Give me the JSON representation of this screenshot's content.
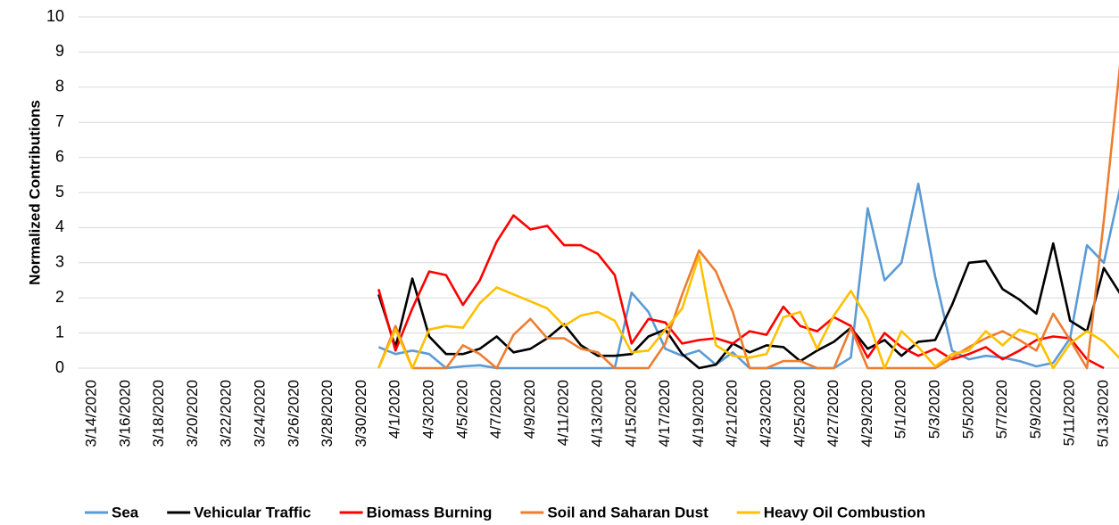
{
  "chart_data": {
    "type": "line",
    "y_label": "Normalized Contributions",
    "categories": [
      "3/14/2020",
      null,
      "3/16/2020",
      null,
      "3/18/2020",
      null,
      "3/20/2020",
      null,
      "3/22/2020",
      null,
      "3/24/2020",
      null,
      "3/26/2020",
      null,
      "3/28/2020",
      null,
      "3/30/2020",
      null,
      "4/1/2020",
      null,
      "4/3/2020",
      null,
      "4/5/2020",
      null,
      "4/7/2020",
      null,
      "4/9/2020",
      null,
      "4/11/2020",
      null,
      "4/13/2020",
      null,
      "4/15/2020",
      null,
      "4/17/2020",
      null,
      "4/19/2020",
      null,
      "4/21/2020",
      null,
      "4/23/2020",
      null,
      "4/25/2020",
      null,
      "4/27/2020",
      null,
      "4/29/2020",
      null,
      "5/1/2020",
      null,
      "5/3/2020",
      null,
      "5/5/2020",
      null,
      "5/7/2020",
      null,
      "5/9/2020",
      null,
      "5/11/2020",
      null,
      "5/13/2020",
      null
    ],
    "series": [
      {
        "name": "Sea",
        "color": "#5b9bd5",
        "values": [
          null,
          null,
          null,
          null,
          null,
          null,
          null,
          null,
          null,
          null,
          null,
          null,
          null,
          null,
          null,
          null,
          null,
          0.6,
          0.4,
          0.5,
          0.4,
          0,
          0.05,
          0.08,
          0,
          0,
          0,
          0,
          0,
          0,
          0,
          0,
          2.15,
          1.6,
          0.55,
          0.35,
          0.5,
          0.1,
          0.45,
          0,
          0,
          0,
          0,
          0,
          0,
          0.3,
          4.55,
          2.5,
          3.0,
          5.25,
          2.6,
          0.5,
          0.25,
          0.35,
          0.3,
          0.2,
          0.05,
          0.15,
          0.85,
          3.5,
          3.0,
          5.2
        ]
      },
      {
        "name": "Vehicular Traffic",
        "color": "#000000",
        "values": [
          null,
          null,
          null,
          null,
          null,
          null,
          null,
          null,
          null,
          null,
          null,
          null,
          null,
          null,
          null,
          null,
          null,
          2.1,
          0.6,
          2.55,
          0.9,
          0.4,
          0.4,
          0.55,
          0.9,
          0.45,
          0.55,
          0.85,
          1.25,
          0.65,
          0.35,
          0.35,
          0.4,
          0.9,
          1.1,
          0.4,
          0,
          0.1,
          0.7,
          0.45,
          0.65,
          0.6,
          0.2,
          0.5,
          0.75,
          1.15,
          0.55,
          0.8,
          0.35,
          0.75,
          0.8,
          1.8,
          3.0,
          3.05,
          2.25,
          1.95,
          1.55,
          3.55,
          1.35,
          1.05,
          2.85,
          2.1
        ]
      },
      {
        "name": "Biomass Burning",
        "color": "#ff0000",
        "values": [
          null,
          null,
          null,
          null,
          null,
          null,
          null,
          null,
          null,
          null,
          null,
          null,
          null,
          null,
          null,
          null,
          null,
          2.25,
          0.5,
          1.7,
          2.75,
          2.65,
          1.8,
          2.5,
          3.6,
          4.35,
          3.95,
          4.05,
          3.5,
          3.5,
          3.25,
          2.65,
          0.7,
          1.4,
          1.3,
          0.7,
          0.8,
          0.85,
          0.7,
          1.05,
          0.95,
          1.75,
          1.2,
          1.05,
          1.45,
          1.2,
          0.3,
          1.0,
          0.6,
          0.35,
          0.55,
          0.25,
          0.4,
          0.6,
          0.25,
          0.5,
          0.8,
          0.9,
          0.85,
          0.25,
          0,
          null
        ]
      },
      {
        "name": "Soil and Saharan Dust",
        "color": "#ed7d31",
        "values": [
          null,
          null,
          null,
          null,
          null,
          null,
          null,
          null,
          null,
          null,
          null,
          null,
          null,
          null,
          null,
          null,
          null,
          0,
          1.2,
          0,
          0,
          0,
          0.65,
          0.4,
          0,
          0.95,
          1.4,
          0.85,
          0.85,
          0.55,
          0.45,
          0,
          0,
          0,
          0.7,
          2.1,
          3.35,
          2.75,
          1.6,
          0,
          0,
          0.2,
          0.2,
          0,
          0,
          1.15,
          0,
          0,
          0,
          0,
          0,
          0.3,
          0.6,
          0.85,
          1.05,
          0.8,
          0.5,
          1.55,
          0.8,
          0,
          4.2,
          8.8
        ]
      },
      {
        "name": "Heavy Oil Combustion",
        "color": "#ffc000",
        "values": [
          null,
          null,
          null,
          null,
          null,
          null,
          null,
          null,
          null,
          null,
          null,
          null,
          null,
          null,
          null,
          null,
          null,
          0,
          1.1,
          0,
          1.1,
          1.2,
          1.15,
          1.85,
          2.3,
          2.1,
          1.9,
          1.7,
          1.2,
          1.5,
          1.6,
          1.35,
          0.45,
          0.5,
          1.1,
          1.7,
          3.2,
          0.65,
          0.35,
          0.3,
          0.4,
          1.45,
          1.6,
          0.55,
          1.5,
          2.2,
          1.4,
          0,
          1.05,
          0.6,
          0.05,
          0.4,
          0.5,
          1.05,
          0.65,
          1.1,
          0.95,
          0,
          0.7,
          1.05,
          0.75,
          0.25
        ]
      }
    ],
    "ylim": [
      0,
      10
    ],
    "yticks": [
      0,
      1,
      2,
      3,
      4,
      5,
      6,
      7,
      8,
      9,
      10
    ],
    "grid": true,
    "legend": "bottom"
  }
}
